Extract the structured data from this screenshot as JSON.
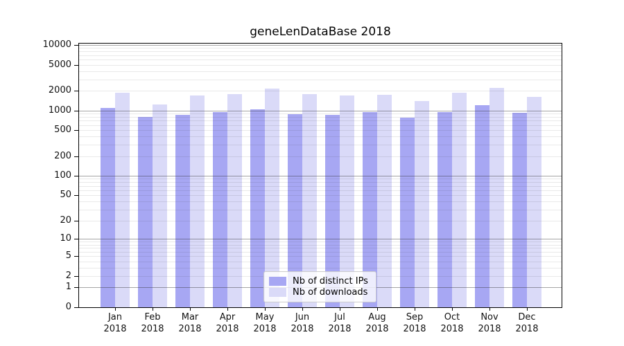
{
  "chart_data": {
    "type": "bar",
    "title": "geneLenDataBase 2018",
    "categories": [
      "Jan",
      "Feb",
      "Mar",
      "Apr",
      "May",
      "Jun",
      "Jul",
      "Aug",
      "Sep",
      "Oct",
      "Nov",
      "Dec"
    ],
    "x_tick_year": "2018",
    "series": [
      {
        "name": "Nb of distinct IPs",
        "color": "#a7a7f3",
        "values": [
          1100,
          790,
          850,
          950,
          1050,
          880,
          860,
          940,
          780,
          950,
          1200,
          930
        ]
      },
      {
        "name": "Nb of downloads",
        "color": "#dadaf8",
        "values": [
          1850,
          1250,
          1700,
          1780,
          2150,
          1800,
          1700,
          1720,
          1400,
          1870,
          2200,
          1620
        ]
      }
    ],
    "y_scale": "log10(value+1)",
    "y_ticks": [
      0,
      1,
      2,
      5,
      10,
      20,
      50,
      100,
      200,
      500,
      1000,
      2000,
      5000,
      10000
    ],
    "y_major_gridlines": [
      1,
      10,
      100,
      1000,
      10000
    ],
    "ylim": [
      0,
      10000
    ],
    "grid": true,
    "legend_position": "lower center"
  },
  "colors": {
    "background": "#ffffff",
    "spine": "#000000",
    "grid_major": "rgba(40,40,40,0.42)",
    "grid_minor": "rgba(40,40,40,0.10)",
    "text": "#111111"
  }
}
